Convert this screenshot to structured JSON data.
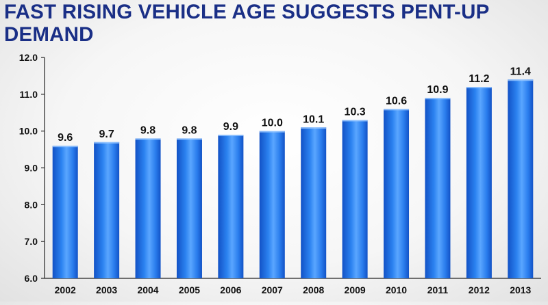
{
  "slide": {
    "title": "FAST RISING VEHICLE AGE SUGGESTS PENT-UP DEMAND"
  },
  "colors": {
    "title": "#1a2f86",
    "bar_dark": "#1565e0",
    "bar_light": "#5aa6ff",
    "axis": "#222222"
  },
  "chart_data": {
    "type": "bar",
    "title": "",
    "xlabel": "",
    "ylabel": "",
    "categories": [
      "2002",
      "2003",
      "2004",
      "2005",
      "2006",
      "2007",
      "2008",
      "2009",
      "2010",
      "2011",
      "2012",
      "2013"
    ],
    "values": [
      9.6,
      9.7,
      9.8,
      9.8,
      9.9,
      10.0,
      10.1,
      10.3,
      10.6,
      10.9,
      11.2,
      11.4
    ],
    "value_labels": [
      "9.6",
      "9.7",
      "9.8",
      "9.8",
      "9.9",
      "10.0",
      "10.1",
      "10.3",
      "10.6",
      "10.9",
      "11.2",
      "11.4"
    ],
    "ylim": [
      6.0,
      12.0
    ],
    "yticks": [
      "6.0",
      "7.0",
      "8.0",
      "9.0",
      "10.0",
      "11.0",
      "12.0"
    ],
    "grid": false,
    "legend": "none"
  }
}
